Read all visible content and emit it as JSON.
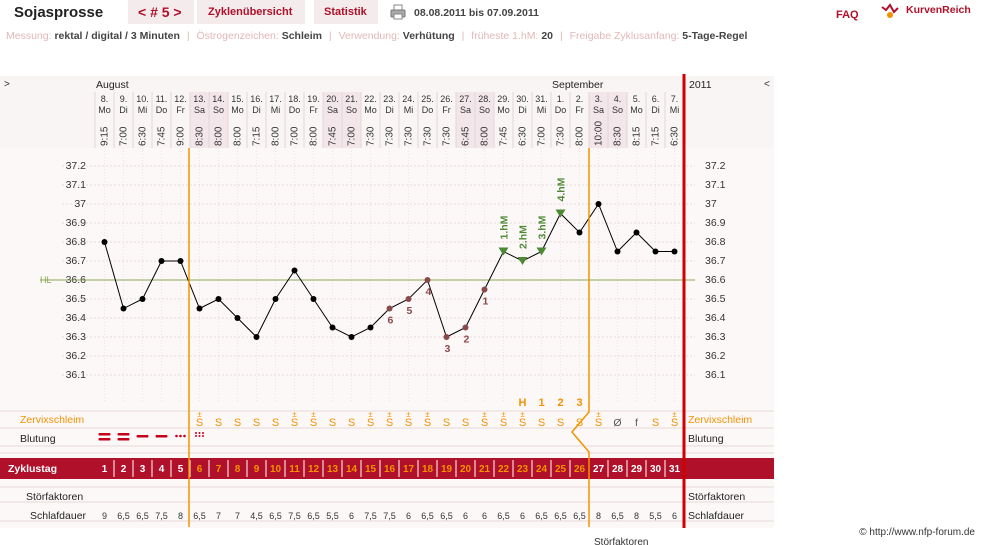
{
  "header": {
    "title": "Sojasprosse",
    "cycle_nav": "< # 5 >",
    "tab_overview": "Zyklenübersicht",
    "tab_stats": "Statistik",
    "date_range": "08.08.2011 bis 07.09.2011",
    "faq": "FAQ",
    "logo_text": "KurvenReich"
  },
  "info": [
    {
      "label": "Messung:",
      "value": "rektal / digital / 3 Minuten"
    },
    {
      "label": "Östrogenzeichen:",
      "value": "Schleim"
    },
    {
      "label": "Verwendung:",
      "value": "Verhütung"
    },
    {
      "label": "früheste 1.hM:",
      "value": "20"
    },
    {
      "label": "Freigabe Zyklusanfang:",
      "value": "5-Tage-Regel"
    }
  ],
  "chart": {
    "nav_left": ">",
    "nav_right": "<",
    "month1": "August",
    "month2": "September",
    "year": "2011",
    "hl_label": "HL",
    "hl_value": 36.6,
    "y_ticks": [
      "37.2",
      "37.1",
      "37",
      "36.9",
      "36.8",
      "36.7",
      "36.6",
      "36.5",
      "36.4",
      "36.3",
      "36.2",
      "36.1"
    ],
    "dates": [
      "8.",
      "9.",
      "10.",
      "11.",
      "12.",
      "13.",
      "14.",
      "15.",
      "16.",
      "17.",
      "18.",
      "19.",
      "20.",
      "21.",
      "22.",
      "23.",
      "24.",
      "25.",
      "26.",
      "27.",
      "28.",
      "29.",
      "30.",
      "31.",
      "1.",
      "2.",
      "3.",
      "4.",
      "5.",
      "6.",
      "7."
    ],
    "weekdays": [
      "Mo",
      "Di",
      "Mi",
      "Do",
      "Fr",
      "Sa",
      "So",
      "Mo",
      "Di",
      "Mi",
      "Do",
      "Fr",
      "Sa",
      "So",
      "Mo",
      "Di",
      "Mi",
      "Do",
      "Fr",
      "Sa",
      "So",
      "Mo",
      "Di",
      "Mi",
      "Do",
      "Fr",
      "Sa",
      "So",
      "Mo",
      "Di",
      "Mi"
    ],
    "times": [
      "9:15",
      "7:00",
      "6:30",
      "7:45",
      "9:00",
      "8:30",
      "8:00",
      "8:00",
      "7:15",
      "8:00",
      "7:00",
      "8:00",
      "7:45",
      "7:00",
      "7:30",
      "7:30",
      "7:30",
      "7:30",
      "7:30",
      "6:45",
      "8:00",
      "7:45",
      "6:30",
      "7:00",
      "7:30",
      "8:00",
      "10:00",
      "8:30",
      "8:15",
      "7:15",
      "6:30"
    ],
    "temps": [
      36.8,
      36.45,
      36.5,
      36.7,
      36.7,
      36.45,
      36.5,
      36.4,
      36.3,
      36.5,
      36.65,
      36.5,
      36.35,
      36.3,
      36.35,
      36.45,
      36.5,
      36.6,
      36.3,
      36.35,
      36.55,
      36.75,
      36.7,
      36.75,
      36.95,
      36.85,
      37.0,
      36.75,
      36.85,
      36.75,
      36.75
    ],
    "lower_labels": [
      {
        "day": 16,
        "text": "6"
      },
      {
        "day": 17,
        "text": "5"
      },
      {
        "day": 18,
        "text": "4"
      },
      {
        "day": 19,
        "text": "3"
      },
      {
        "day": 20,
        "text": "2"
      },
      {
        "day": 21,
        "text": "1"
      }
    ],
    "hm_labels": [
      {
        "day": 22,
        "text": "1.hM"
      },
      {
        "day": 23,
        "text": "2.hM"
      },
      {
        "day": 24,
        "text": "3.hM"
      },
      {
        "day": 25,
        "text": "4.hM"
      }
    ],
    "mucus_label": "Zervixschleim",
    "mucus_peak": [
      "H",
      "1",
      "2",
      "3"
    ],
    "mucus": [
      "",
      "",
      "",
      "",
      "",
      "S+",
      "S",
      "S",
      "S",
      "S",
      "S+",
      "S+",
      "S",
      "S",
      "S+",
      "S+",
      "S+",
      "S+",
      "S",
      "S",
      "S+",
      "S+",
      "S+",
      "S",
      "S",
      "S",
      "S+",
      "Ø",
      "f",
      "S",
      "S+"
    ],
    "bleeding_label": "Blutung",
    "bleeding": [
      "heavy",
      "heavy",
      "medium",
      "medium",
      "light",
      "spotting",
      "",
      "",
      "",
      "",
      "",
      "",
      "",
      "",
      "",
      "",
      "",
      "",
      "",
      "",
      "",
      "",
      "",
      "",
      "",
      "",
      "",
      "",
      "",
      "",
      ""
    ],
    "cycleday_label": "Zyklustag",
    "cycle_days": [
      "1",
      "2",
      "3",
      "4",
      "5",
      "6",
      "7",
      "8",
      "9",
      "10",
      "11",
      "12",
      "13",
      "14",
      "15",
      "16",
      "17",
      "18",
      "19",
      "20",
      "21",
      "22",
      "23",
      "24",
      "25",
      "26",
      "27",
      "28",
      "29",
      "30",
      "31"
    ],
    "disturb_label": "Störfaktoren",
    "sleep_label": "Schlafdauer",
    "sleep": [
      "9",
      "6,5",
      "6,5",
      "7,5",
      "8",
      "6,5",
      "7",
      "7",
      "4,5",
      "6,5",
      "7,5",
      "6,5",
      "5,5",
      "6",
      "7,5",
      "7,5",
      "6",
      "6,5",
      "6,5",
      "6",
      "6",
      "6,5",
      "6",
      "6,5",
      "6,5",
      "6,5",
      "8",
      "6,5",
      "8",
      "5,5",
      "6"
    ],
    "bottom_cut_text": "Störfaktoren",
    "colors": {
      "accent": "#b0102a",
      "orange": "#f39200",
      "hl": "#8aa650",
      "red_line": "#d00000",
      "weekend": "#f3e6ea",
      "hm": "#4e8a36"
    }
  },
  "footer": {
    "copyright": "© http://www.nfp-forum.de"
  }
}
